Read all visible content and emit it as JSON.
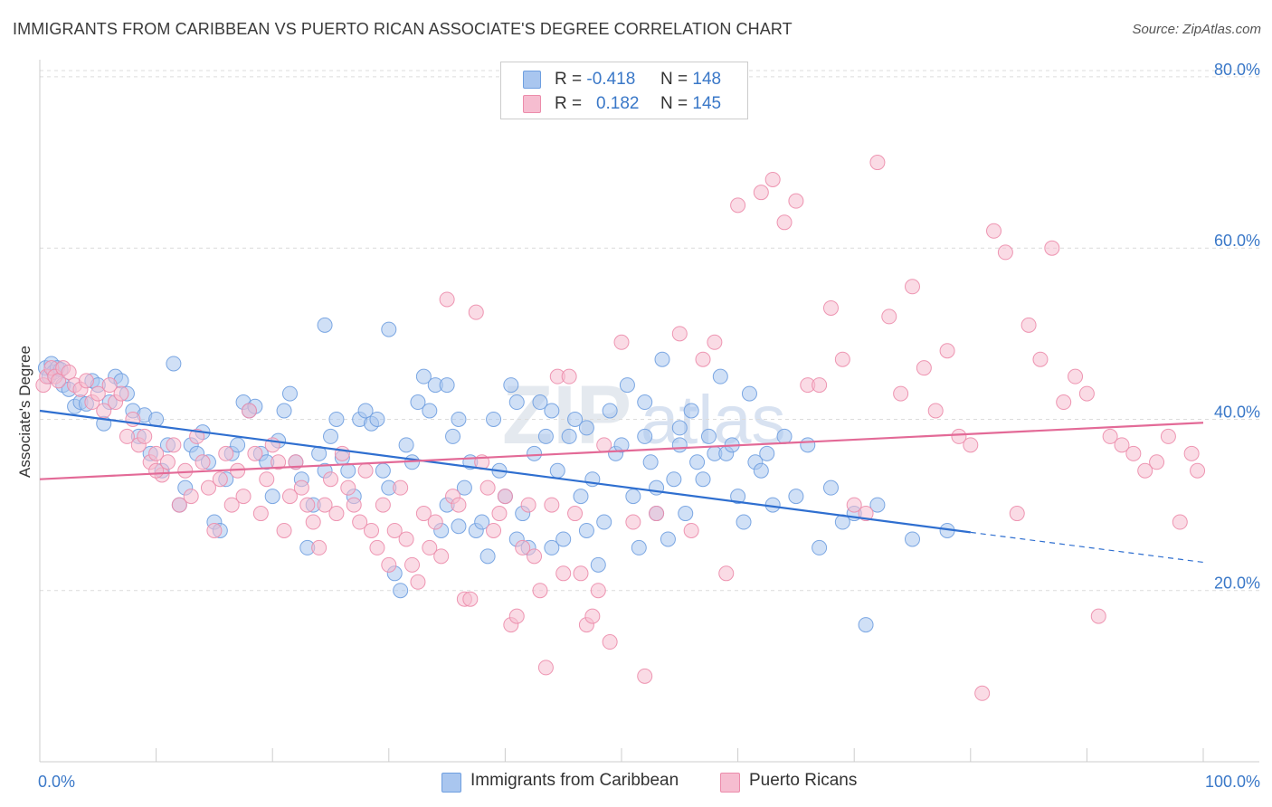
{
  "title": "IMMIGRANTS FROM CARIBBEAN VS PUERTO RICAN ASSOCIATE'S DEGREE CORRELATION CHART",
  "source": "Source: ZipAtlas.com",
  "watermark": {
    "zip": "ZIP",
    "atlas": "atlas"
  },
  "legend": {
    "r_label": "R =",
    "n_label": "N =",
    "rows": [
      {
        "r": "-0.418",
        "n": "148",
        "fill": "#a9c6ef",
        "stroke": "#6f9fe0"
      },
      {
        "r": "0.182",
        "n": "145",
        "fill": "#f6bdd0",
        "stroke": "#ec8cab"
      }
    ]
  },
  "chart_data": {
    "type": "scatter",
    "title": "IMMIGRANTS FROM CARIBBEAN VS PUERTO RICAN ASSOCIATE'S DEGREE CORRELATION CHART",
    "xlabel": "",
    "ylabel": "Associate's Degree",
    "xlim": [
      0,
      100
    ],
    "ylim": [
      0,
      82
    ],
    "x_tick_labels": [
      "0.0%",
      "100.0%"
    ],
    "y_ticks": [
      {
        "value": 20,
        "label": "20.0%"
      },
      {
        "value": 40,
        "label": "40.0%"
      },
      {
        "value": 60,
        "label": "60.0%"
      },
      {
        "value": 80,
        "label": "80.0%"
      }
    ],
    "grid": true,
    "series": [
      {
        "name": "Immigrants from Caribbean",
        "color": "#6f9fe0",
        "fill": "#a9c6ef",
        "line_color": "#2f6fd0",
        "trend": {
          "x0": 0,
          "y0": 41,
          "x1": 80,
          "y1": 26.8,
          "dash_to": 100,
          "dash_y": 23.3
        },
        "points": [
          [
            0.5,
            46
          ],
          [
            0.8,
            45
          ],
          [
            1,
            46.5
          ],
          [
            1.2,
            45.5
          ],
          [
            1.5,
            46
          ],
          [
            1.8,
            45.8
          ],
          [
            2,
            44
          ],
          [
            2.5,
            43.5
          ],
          [
            3,
            41.5
          ],
          [
            3.5,
            42
          ],
          [
            4,
            41.8
          ],
          [
            4.5,
            44.5
          ],
          [
            5,
            44
          ],
          [
            5.5,
            39.5
          ],
          [
            6,
            42
          ],
          [
            6.5,
            45
          ],
          [
            7,
            44.5
          ],
          [
            7.5,
            43
          ],
          [
            8,
            41
          ],
          [
            8.5,
            38
          ],
          [
            9,
            40.5
          ],
          [
            9.5,
            36
          ],
          [
            10,
            40
          ],
          [
            10.5,
            34
          ],
          [
            11,
            37
          ],
          [
            11.5,
            46.5
          ],
          [
            12,
            30
          ],
          [
            12.5,
            32
          ],
          [
            13,
            37
          ],
          [
            13.5,
            36
          ],
          [
            14,
            38.5
          ],
          [
            14.5,
            35
          ],
          [
            15,
            28
          ],
          [
            15.5,
            27
          ],
          [
            16,
            33
          ],
          [
            16.5,
            36
          ],
          [
            17,
            37
          ],
          [
            17.5,
            42
          ],
          [
            18,
            41
          ],
          [
            18.5,
            41.5
          ],
          [
            19,
            36
          ],
          [
            19.5,
            35
          ],
          [
            20,
            31
          ],
          [
            20.5,
            37.5
          ],
          [
            21,
            41
          ],
          [
            21.5,
            43
          ],
          [
            22,
            35
          ],
          [
            22.5,
            33
          ],
          [
            23,
            25
          ],
          [
            23.5,
            30
          ],
          [
            24,
            36
          ],
          [
            24.5,
            34
          ],
          [
            25,
            38
          ],
          [
            25.5,
            40
          ],
          [
            26,
            35.5
          ],
          [
            26.5,
            34
          ],
          [
            27,
            31
          ],
          [
            27.5,
            40
          ],
          [
            28,
            41
          ],
          [
            28.5,
            39.5
          ],
          [
            29,
            40
          ],
          [
            29.5,
            34
          ],
          [
            30,
            32
          ],
          [
            30.5,
            22
          ],
          [
            31,
            20
          ],
          [
            31.5,
            37
          ],
          [
            32,
            35
          ],
          [
            32.5,
            42
          ],
          [
            33,
            45
          ],
          [
            33.5,
            41
          ],
          [
            34,
            44
          ],
          [
            34.5,
            27
          ],
          [
            35,
            30
          ],
          [
            35.5,
            38
          ],
          [
            36,
            27.5
          ],
          [
            36.5,
            32
          ],
          [
            37,
            35
          ],
          [
            37.5,
            27
          ],
          [
            38,
            28
          ],
          [
            38.5,
            24
          ],
          [
            39,
            40
          ],
          [
            39.5,
            34
          ],
          [
            40,
            31
          ],
          [
            40.5,
            44
          ],
          [
            41,
            26
          ],
          [
            41.5,
            29
          ],
          [
            42,
            25
          ],
          [
            42.5,
            36
          ],
          [
            43,
            42
          ],
          [
            43.5,
            38
          ],
          [
            44,
            25
          ],
          [
            44.5,
            34
          ],
          [
            45,
            26
          ],
          [
            45.5,
            38
          ],
          [
            46,
            40
          ],
          [
            46.5,
            31
          ],
          [
            47,
            27
          ],
          [
            47.5,
            33
          ],
          [
            48,
            23
          ],
          [
            48.5,
            28
          ],
          [
            49,
            41
          ],
          [
            49.5,
            36
          ],
          [
            50,
            37
          ],
          [
            50.5,
            44
          ],
          [
            51,
            31
          ],
          [
            51.5,
            25
          ],
          [
            52,
            38
          ],
          [
            52.5,
            35
          ],
          [
            53,
            32
          ],
          [
            53.5,
            47
          ],
          [
            54,
            26
          ],
          [
            54.5,
            33
          ],
          [
            55,
            39
          ],
          [
            55.5,
            29
          ],
          [
            56,
            41
          ],
          [
            56.5,
            35
          ],
          [
            57,
            33
          ],
          [
            57.5,
            38
          ],
          [
            58,
            36
          ],
          [
            58.5,
            45
          ],
          [
            59,
            36
          ],
          [
            59.5,
            37
          ],
          [
            60,
            31
          ],
          [
            60.5,
            28
          ],
          [
            61,
            43
          ],
          [
            61.5,
            35
          ],
          [
            62,
            34
          ],
          [
            62.5,
            36
          ],
          [
            63,
            30
          ],
          [
            64,
            38
          ],
          [
            65,
            31
          ],
          [
            66,
            37
          ],
          [
            67,
            25
          ],
          [
            68,
            32
          ],
          [
            69,
            28
          ],
          [
            70,
            29
          ],
          [
            71,
            16
          ],
          [
            72,
            30
          ],
          [
            75,
            26
          ],
          [
            78,
            27
          ],
          [
            24.5,
            51
          ],
          [
            30,
            50.5
          ],
          [
            35,
            44
          ],
          [
            36,
            40
          ],
          [
            41,
            42
          ],
          [
            44,
            41
          ],
          [
            47,
            39
          ],
          [
            52,
            42
          ],
          [
            53,
            29
          ],
          [
            55,
            37
          ]
        ]
      },
      {
        "name": "Puerto Ricans",
        "color": "#ec8cab",
        "fill": "#f6bdd0",
        "line_color": "#e36a97",
        "trend": {
          "x0": 0,
          "y0": 33,
          "x1": 100,
          "y1": 39.6
        },
        "points": [
          [
            0.3,
            44
          ],
          [
            0.6,
            45
          ],
          [
            1,
            46
          ],
          [
            1.3,
            45
          ],
          [
            1.6,
            44.5
          ],
          [
            2,
            46
          ],
          [
            2.5,
            45.5
          ],
          [
            3,
            44
          ],
          [
            3.5,
            43.5
          ],
          [
            4,
            44.5
          ],
          [
            4.5,
            42
          ],
          [
            5,
            43
          ],
          [
            5.5,
            41
          ],
          [
            6,
            44
          ],
          [
            6.5,
            42
          ],
          [
            7,
            43
          ],
          [
            7.5,
            38
          ],
          [
            8,
            40
          ],
          [
            8.5,
            37
          ],
          [
            9,
            38
          ],
          [
            9.5,
            35
          ],
          [
            10,
            36
          ],
          [
            10.5,
            33.5
          ],
          [
            11,
            35
          ],
          [
            11.5,
            37
          ],
          [
            12,
            30
          ],
          [
            12.5,
            34
          ],
          [
            13,
            31
          ],
          [
            13.5,
            38
          ],
          [
            14,
            35
          ],
          [
            14.5,
            32
          ],
          [
            15,
            27
          ],
          [
            15.5,
            33
          ],
          [
            16,
            36
          ],
          [
            16.5,
            30
          ],
          [
            17,
            34
          ],
          [
            17.5,
            31
          ],
          [
            18,
            41
          ],
          [
            18.5,
            36
          ],
          [
            19,
            29
          ],
          [
            19.5,
            33
          ],
          [
            20,
            37
          ],
          [
            20.5,
            35
          ],
          [
            21,
            27
          ],
          [
            21.5,
            31
          ],
          [
            22,
            35
          ],
          [
            22.5,
            32
          ],
          [
            23,
            30
          ],
          [
            23.5,
            28
          ],
          [
            24,
            25
          ],
          [
            24.5,
            30
          ],
          [
            25,
            33
          ],
          [
            25.5,
            29
          ],
          [
            26,
            36
          ],
          [
            26.5,
            32
          ],
          [
            27,
            30
          ],
          [
            27.5,
            28
          ],
          [
            28,
            34
          ],
          [
            28.5,
            27
          ],
          [
            29,
            25
          ],
          [
            29.5,
            30
          ],
          [
            30,
            23
          ],
          [
            30.5,
            27
          ],
          [
            31,
            32
          ],
          [
            31.5,
            26
          ],
          [
            32,
            23
          ],
          [
            32.5,
            21
          ],
          [
            33,
            29
          ],
          [
            33.5,
            25
          ],
          [
            34,
            28
          ],
          [
            34.5,
            24
          ],
          [
            35,
            54
          ],
          [
            35.5,
            31
          ],
          [
            36,
            30
          ],
          [
            36.5,
            19
          ],
          [
            37,
            19
          ],
          [
            37.5,
            52.5
          ],
          [
            38,
            35
          ],
          [
            38.5,
            32
          ],
          [
            39,
            27
          ],
          [
            39.5,
            29
          ],
          [
            40,
            31
          ],
          [
            40.5,
            16
          ],
          [
            41,
            17
          ],
          [
            41.5,
            25
          ],
          [
            42,
            30
          ],
          [
            42.5,
            24
          ],
          [
            43,
            20
          ],
          [
            43.5,
            11
          ],
          [
            44,
            30
          ],
          [
            44.5,
            45
          ],
          [
            45,
            22
          ],
          [
            45.5,
            45
          ],
          [
            46,
            29
          ],
          [
            46.5,
            22
          ],
          [
            47,
            16
          ],
          [
            47.5,
            17
          ],
          [
            48,
            20
          ],
          [
            48.5,
            37
          ],
          [
            49,
            14
          ],
          [
            50,
            49
          ],
          [
            51,
            28
          ],
          [
            52,
            10
          ],
          [
            53,
            29
          ],
          [
            55,
            50
          ],
          [
            56,
            27
          ],
          [
            57,
            47
          ],
          [
            58,
            49
          ],
          [
            59,
            22
          ],
          [
            60,
            65
          ],
          [
            62,
            66.5
          ],
          [
            63,
            68
          ],
          [
            64,
            63
          ],
          [
            65,
            65.5
          ],
          [
            66,
            44
          ],
          [
            67,
            44
          ],
          [
            68,
            53
          ],
          [
            69,
            47
          ],
          [
            70,
            30
          ],
          [
            71,
            29
          ],
          [
            72,
            70
          ],
          [
            73,
            52
          ],
          [
            74,
            43
          ],
          [
            75,
            55.5
          ],
          [
            76,
            46
          ],
          [
            77,
            41
          ],
          [
            78,
            48
          ],
          [
            79,
            38
          ],
          [
            80,
            37
          ],
          [
            81,
            8
          ],
          [
            82,
            62
          ],
          [
            83,
            59.5
          ],
          [
            84,
            29
          ],
          [
            85,
            51
          ],
          [
            86,
            47
          ],
          [
            87,
            60
          ],
          [
            88,
            42
          ],
          [
            89,
            45
          ],
          [
            90,
            43
          ],
          [
            92,
            38
          ],
          [
            93,
            37
          ],
          [
            94,
            36
          ],
          [
            95,
            34
          ],
          [
            96,
            35
          ],
          [
            97,
            38
          ],
          [
            98,
            28
          ],
          [
            99,
            36
          ],
          [
            99.5,
            34
          ],
          [
            91,
            17
          ],
          [
            10,
            34
          ]
        ]
      }
    ]
  }
}
